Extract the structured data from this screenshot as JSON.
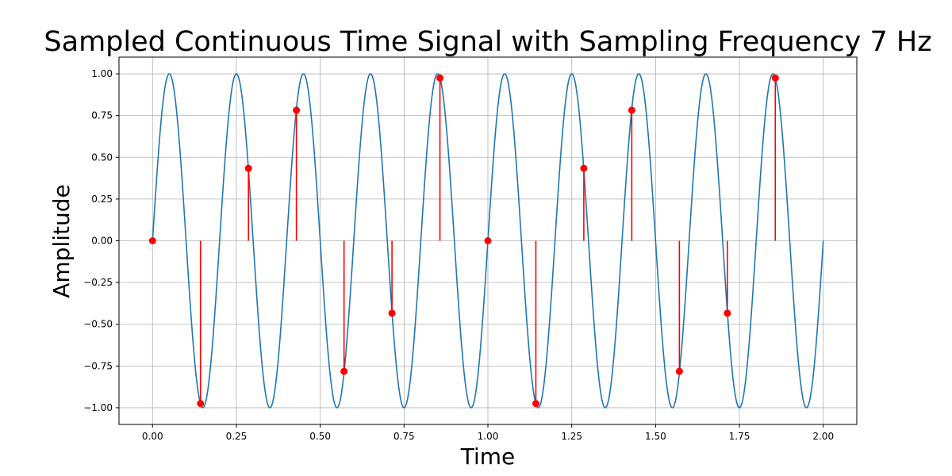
{
  "chart_data": {
    "type": "line",
    "title": "Sampled Continuous Time Signal with Sampling Frequency 7 Hz",
    "xlabel": "Time",
    "ylabel": "Amplitude",
    "xlim": [
      -0.1,
      2.1
    ],
    "ylim": [
      -1.1,
      1.1
    ],
    "grid": true,
    "x_ticks": [
      0.0,
      0.25,
      0.5,
      0.75,
      1.0,
      1.25,
      1.5,
      1.75,
      2.0
    ],
    "x_tick_labels": [
      "0.00",
      "0.25",
      "0.50",
      "0.75",
      "1.00",
      "1.25",
      "1.50",
      "1.75",
      "2.00"
    ],
    "y_ticks": [
      -1.0,
      -0.75,
      -0.5,
      -0.25,
      0.0,
      0.25,
      0.5,
      0.75,
      1.0
    ],
    "y_tick_labels": [
      "−1.00",
      "−0.75",
      "−0.50",
      "−0.25",
      "0.00",
      "0.25",
      "0.50",
      "0.75",
      "1.00"
    ],
    "continuous_signal": {
      "function": "sin(2*pi*5*t)",
      "frequency_hz": 5,
      "t_range": [
        0,
        2
      ],
      "color": "#1f77b4"
    },
    "samples": {
      "color": "#ff0000",
      "x": [
        0.0,
        0.143,
        0.286,
        0.429,
        0.571,
        0.714,
        0.857,
        1.0,
        1.143,
        1.286,
        1.429,
        1.571,
        1.714,
        1.857
      ],
      "y": [
        0.0,
        -0.975,
        0.434,
        0.782,
        -0.782,
        -0.434,
        0.975,
        0.0,
        -0.975,
        0.434,
        0.782,
        -0.782,
        -0.434,
        0.975
      ]
    },
    "grid_color": "#b0b0b0"
  }
}
